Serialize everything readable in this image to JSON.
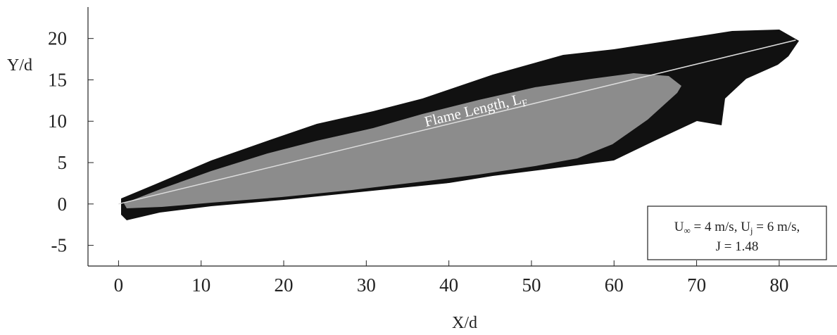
{
  "chart_data": {
    "type": "image-plot",
    "xlabel": "X/d",
    "ylabel": "Y/d",
    "xlim": [
      -3.7,
      87
    ],
    "ylim": [
      -7.5,
      23.8
    ],
    "xticks": [
      0,
      10,
      20,
      30,
      40,
      50,
      60,
      70,
      80
    ],
    "yticks": [
      -5,
      0,
      5,
      10,
      15,
      20
    ],
    "flame_line": {
      "x": [
        0,
        82
      ],
      "y": [
        0,
        19.8
      ],
      "color": "#dddddd"
    },
    "flame_label": [
      "Flame Length, L",
      "F"
    ],
    "condition_lines": [
      [
        "U",
        "∞",
        " = 4 m/s, U",
        "j",
        " = 6 m/s,"
      ],
      [
        "J = 1.48"
      ]
    ]
  }
}
